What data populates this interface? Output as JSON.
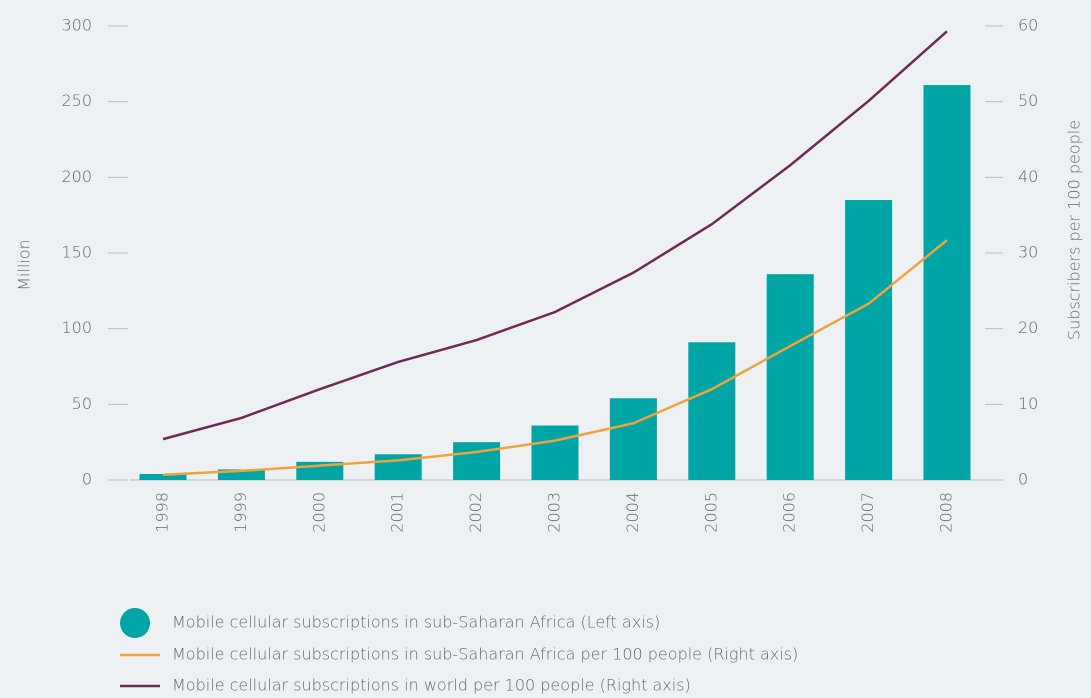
{
  "chart_data": {
    "type": "bar",
    "categories": [
      "1998",
      "1999",
      "2000",
      "2001",
      "2002",
      "2003",
      "2004",
      "2005",
      "2006",
      "2007",
      "2008"
    ],
    "series": [
      {
        "name": "Mobile cellular subscriptions in sub-Saharan Africa (Left axis)",
        "type": "bar",
        "color": "#00a5a5",
        "values": [
          4,
          7,
          12,
          17,
          25,
          36,
          54,
          91,
          136,
          185,
          261
        ]
      },
      {
        "name": "Mobile cellular subscriptions in sub-Saharan Africa per 100 people (Right axis)",
        "type": "line",
        "axis": "y2",
        "color": "#f0a23c",
        "values": [
          0.7,
          1.2,
          1.9,
          2.6,
          3.7,
          5.2,
          7.5,
          12,
          17.7,
          23.3,
          31.7
        ]
      },
      {
        "name": "Mobile cellular subscriptions in world per 100 people (Right axis)",
        "type": "line",
        "axis": "y2",
        "color": "#6e2a56",
        "values": [
          5.4,
          8.2,
          12,
          15.6,
          18.5,
          22.2,
          27.4,
          33.8,
          41.6,
          50.1,
          59.3
        ]
      }
    ],
    "ylabel": "Million",
    "y2label": "Subscribers per 100 people",
    "ylim": [
      0,
      300
    ],
    "yticks": [
      0,
      50,
      100,
      150,
      200,
      250,
      300
    ],
    "y2lim": [
      0,
      60
    ],
    "y2ticks": [
      0,
      10,
      20,
      30,
      40,
      50,
      60
    ],
    "grid": false
  }
}
